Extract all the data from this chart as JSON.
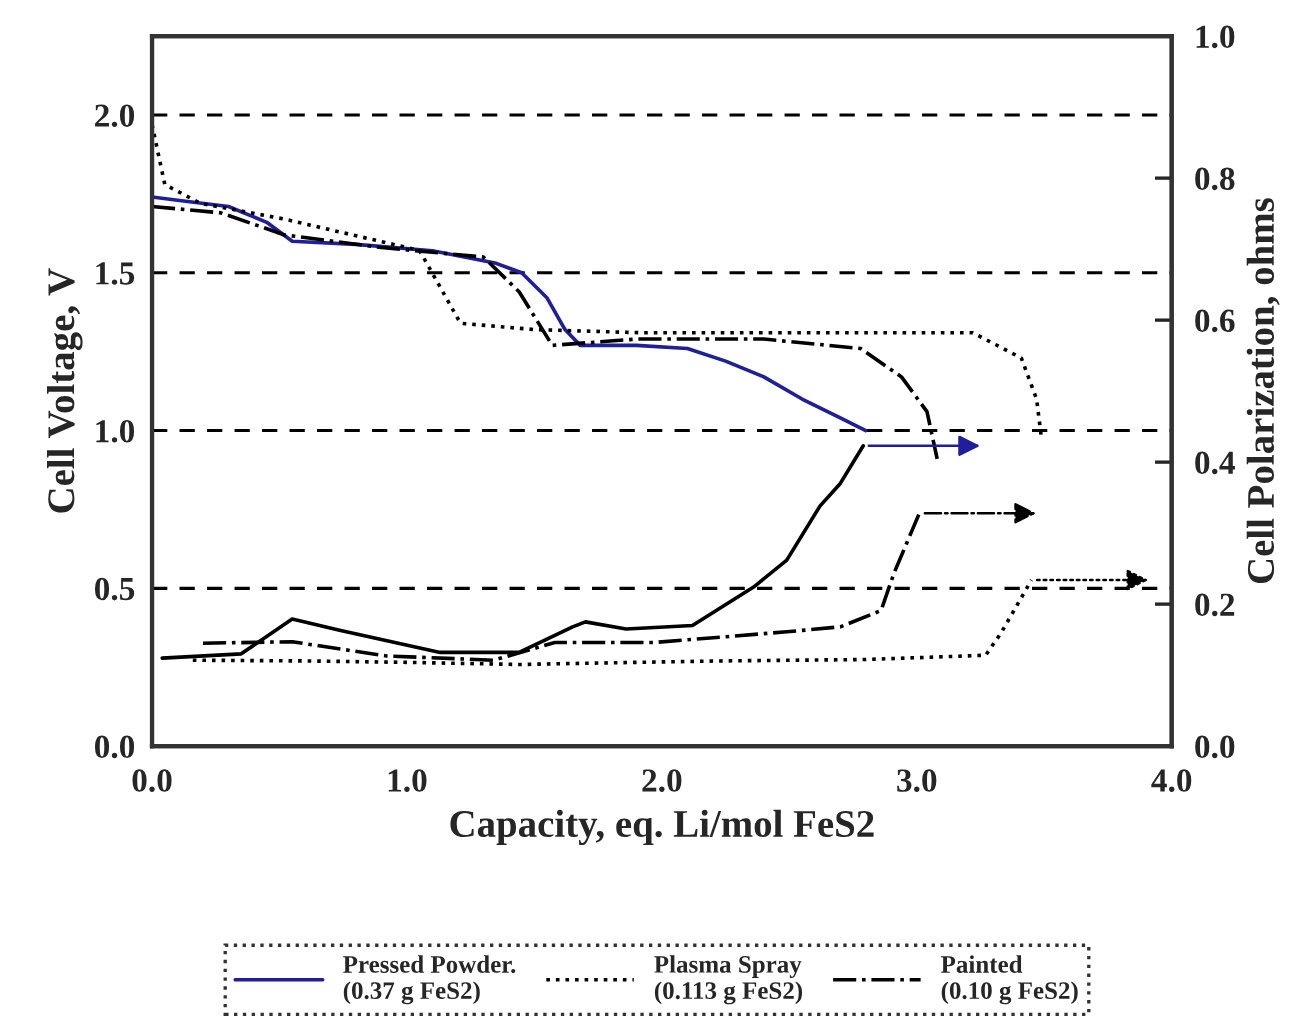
{
  "chart_data": {
    "type": "line",
    "xlabel": "Capacity, eq. Li/mol FeS2",
    "ylabel": "Cell Voltage, V",
    "y2label": "Cell Polarization, ohms",
    "xlim": [
      0,
      4.0
    ],
    "xticks": [
      {
        "value": 0,
        "label": "0.0"
      },
      {
        "value": 1.0,
        "label": "1.0"
      },
      {
        "value": 2.0,
        "label": "2.0"
      },
      {
        "value": 3.0,
        "label": "3.0"
      },
      {
        "value": 4.0,
        "label": "4.0"
      }
    ],
    "ylim": [
      0,
      2.25
    ],
    "yticks": [
      {
        "value": 0,
        "label": "0.0"
      },
      {
        "value": 0.5,
        "label": "0.5"
      },
      {
        "value": 1.0,
        "label": "1.0"
      },
      {
        "value": 1.5,
        "label": "1.5"
      },
      {
        "value": 2.0,
        "label": "2.0"
      }
    ],
    "y2lim": [
      0,
      1.0
    ],
    "y2ticks": [
      {
        "value": 0,
        "label": "0.0"
      },
      {
        "value": 0.2,
        "label": "0.2"
      },
      {
        "value": 0.4,
        "label": "0.4"
      },
      {
        "value": 0.6,
        "label": "0.6"
      },
      {
        "value": 0.8,
        "label": "0.8"
      },
      {
        "value": 1.0,
        "label": "1.0"
      }
    ],
    "grid": "y",
    "legend": "bottom",
    "marker": "none",
    "series": [
      {
        "name": "Pressed Powder.\n(0.37 g FeS2)",
        "color": "#1f1f9c",
        "line_style": "solid",
        "x": [
          0,
          0.1,
          0.3,
          0.45,
          0.55,
          0.8,
          1.1,
          1.35,
          1.45,
          1.55,
          1.62,
          1.68,
          1.9,
          2.1,
          2.25,
          2.4,
          2.55,
          2.7,
          2.8
        ],
        "values": [
          1.74,
          1.73,
          1.71,
          1.66,
          1.6,
          1.59,
          1.57,
          1.53,
          1.5,
          1.42,
          1.32,
          1.27,
          1.27,
          1.26,
          1.22,
          1.17,
          1.1,
          1.04,
          1.0
        ]
      },
      {
        "name": "Plasma Spray\n(0.113 g FeS2)",
        "color": "#000000",
        "line_style": "dotted",
        "x": [
          0,
          0.05,
          0.19,
          0.52,
          1.0,
          1.05,
          1.21,
          1.5,
          1.92,
          2.6,
          3.22,
          3.41,
          3.47,
          3.49
        ],
        "values": [
          1.97,
          1.78,
          1.72,
          1.67,
          1.58,
          1.57,
          1.34,
          1.32,
          1.31,
          1.31,
          1.31,
          1.23,
          1.1,
          0.97
        ]
      },
      {
        "name": "Painted\n(0.10 g FeS2)",
        "color": "#000000",
        "line_style": "dashdot",
        "x": [
          0,
          0.27,
          0.52,
          0.9,
          1.3,
          1.44,
          1.57,
          1.9,
          2.4,
          2.78,
          2.94,
          3.04,
          3.08
        ],
        "values": [
          1.71,
          1.69,
          1.62,
          1.58,
          1.55,
          1.44,
          1.27,
          1.29,
          1.29,
          1.26,
          1.17,
          1.06,
          0.91
        ]
      },
      {
        "color": "#000000",
        "line_style": "solid",
        "axis": "y2",
        "x": [
          0.04,
          0.35,
          0.55,
          0.74,
          1.13,
          1.44,
          1.65,
          1.7,
          1.86,
          2.12,
          2.36,
          2.49,
          2.62,
          2.7,
          2.79
        ],
        "values": [
          0.124,
          0.13,
          0.179,
          0.163,
          0.132,
          0.132,
          0.168,
          0.175,
          0.165,
          0.17,
          0.224,
          0.262,
          0.338,
          0.37,
          0.423
        ]
      },
      {
        "color": "#000000",
        "line_style": "dotted",
        "axis": "y2",
        "x": [
          0.16,
          0.6,
          1.0,
          1.44,
          1.9,
          2.23,
          2.8,
          3.27,
          3.33,
          3.45
        ],
        "values": [
          0.121,
          0.12,
          0.118,
          0.115,
          0.118,
          0.12,
          0.122,
          0.128,
          0.159,
          0.234
        ]
      },
      {
        "color": "#000000",
        "line_style": "dashdot",
        "axis": "y2",
        "x": [
          0.2,
          0.55,
          0.92,
          1.34,
          1.58,
          1.97,
          2.49,
          2.7,
          2.86,
          2.91,
          3.01
        ],
        "values": [
          0.145,
          0.147,
          0.127,
          0.121,
          0.146,
          0.146,
          0.161,
          0.168,
          0.191,
          0.243,
          0.328
        ]
      }
    ]
  }
}
